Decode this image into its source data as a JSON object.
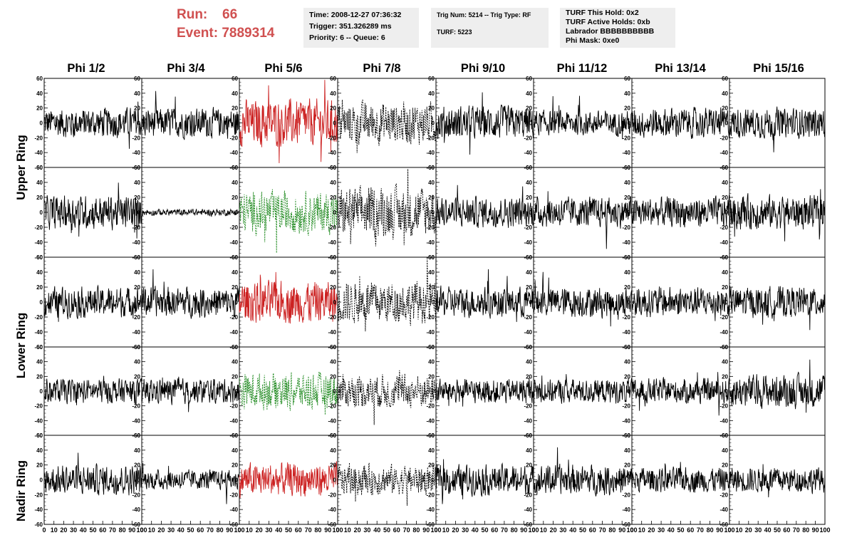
{
  "header": {
    "run_label": "Run:",
    "run_value": "66",
    "event_label": "Event:",
    "event_value": "7889314"
  },
  "info_time": {
    "line1": "Time: 2008-12-27 07:36:32",
    "line2": "Trigger: 351.326289 ms",
    "line3": "Priority: 6 -- Queue: 6"
  },
  "info_trig": {
    "line1": "Trig Num: 5214 -- Trig Type: RF",
    "line2": "TURF: 5223"
  },
  "info_turf": {
    "line1": "TURF This Hold: 0x2",
    "line2": "TURF Active Holds: 0xb",
    "line3": "Labrador BBBBBBBBBB",
    "line4": "Phi Mask: 0xe0"
  },
  "columns": [
    "Phi 1/2",
    "Phi 3/4",
    "Phi 5/6",
    "Phi 7/8",
    "Phi 9/10",
    "Phi 11/12",
    "Phi 13/14",
    "Phi 15/16"
  ],
  "rows": [
    "Upper Ring",
    "Lower Ring",
    "Nadir Ring"
  ],
  "y_ticks": [
    "60",
    "40",
    "20",
    "0",
    "-20",
    "-40",
    "-60"
  ],
  "x_ticks": [
    "0",
    "10",
    "20",
    "30",
    "40",
    "50",
    "60",
    "70",
    "80",
    "90",
    "100"
  ],
  "colors": {
    "trace": "#000000",
    "highlight_red": "#cc2222",
    "highlight_green": "#228b22",
    "run_text": "#d05050",
    "info_bg": "#eeeeee"
  },
  "chart_data": {
    "type": "line",
    "xlim": [
      0,
      100
    ],
    "ylim": [
      -60,
      60
    ],
    "grid": false,
    "panel_rows": 5,
    "panel_cols": 8,
    "panel_amplitudes": [
      [
        18,
        18,
        28,
        25,
        20,
        15,
        18,
        18
      ],
      [
        20,
        4,
        25,
        30,
        18,
        18,
        18,
        20
      ],
      [
        18,
        18,
        25,
        25,
        18,
        18,
        18,
        18
      ],
      [
        15,
        15,
        22,
        20,
        15,
        15,
        15,
        20
      ],
      [
        18,
        12,
        20,
        18,
        18,
        18,
        15,
        15
      ]
    ],
    "panel_styles": [
      [
        "black",
        "black",
        "red",
        "black-dashed",
        "black",
        "black",
        "black",
        "black"
      ],
      [
        "black",
        "black",
        "green-dashed",
        "black-dashed",
        "black",
        "black",
        "black",
        "black"
      ],
      [
        "black",
        "black",
        "red",
        "black-dashed",
        "black",
        "black",
        "black",
        "black"
      ],
      [
        "black",
        "black",
        "green-dashed",
        "black-dashed",
        "black",
        "black",
        "black",
        "black"
      ],
      [
        "black",
        "black",
        "red",
        "black-dashed",
        "black",
        "black",
        "black",
        "black"
      ]
    ]
  }
}
